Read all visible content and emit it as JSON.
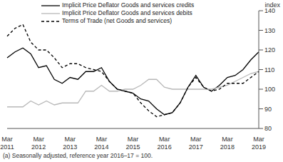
{
  "chart_data": {
    "type": "line",
    "y_label": "index",
    "note": "(a) Seasonally adjusted, reference year 2016–17 = 100.",
    "categories": [
      "Mar 2011",
      null,
      null,
      null,
      "Mar 2012",
      null,
      null,
      null,
      "Mar 2013",
      null,
      null,
      null,
      "Mar 2014",
      null,
      null,
      null,
      "Mar 2015",
      null,
      null,
      null,
      "Mar 2016",
      null,
      null,
      null,
      "Mar 2017",
      null,
      null,
      null,
      "Mar 2018",
      null,
      null,
      null,
      "Mar 2019"
    ],
    "series": [
      {
        "name": "Implicit Price Deflator Goods and services credits",
        "color": "#000000",
        "line_style": "solid",
        "values": [
          116,
          119,
          121,
          118,
          111,
          112,
          105,
          103,
          106,
          105,
          109,
          109,
          111,
          104,
          100,
          99,
          98,
          95,
          94,
          90,
          87,
          88,
          93,
          101,
          107,
          101,
          99,
          102,
          106,
          107,
          110,
          115,
          119
        ]
      },
      {
        "name": "Implicit Price Deflator Goods and services debits",
        "color": "#b8b8b8",
        "line_style": "solid",
        "values": [
          91,
          91,
          91,
          94,
          92,
          94,
          92,
          93,
          93,
          93,
          99,
          99,
          102,
          99,
          99,
          100,
          100,
          102,
          105,
          105,
          101,
          100,
          100,
          100,
          100,
          100,
          100,
          101,
          102,
          104,
          106,
          108,
          109
        ]
      },
      {
        "name": "Terms of Trade (net Goods and services)",
        "color": "#000000",
        "line_style": "dashed",
        "values": [
          127,
          131,
          133,
          124,
          120,
          120,
          116,
          111,
          113,
          113,
          111,
          110,
          109,
          104,
          100,
          99,
          98,
          93,
          89,
          86,
          87,
          88,
          93,
          101,
          106,
          101,
          99,
          100,
          103,
          103,
          103,
          106,
          109
        ]
      }
    ],
    "ylim": [
      80,
      140
    ],
    "yticks": [
      80,
      90,
      100,
      110,
      120,
      130,
      140
    ],
    "grid": false,
    "legend": "top-left"
  }
}
